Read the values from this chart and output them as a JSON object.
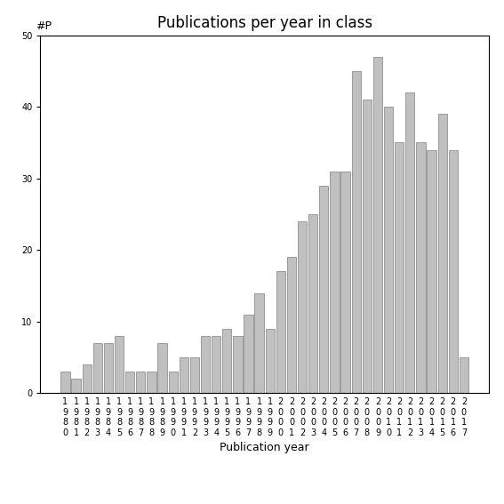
{
  "title": "Publications per year in class",
  "xlabel": "Publication year",
  "ylabel": "#P",
  "years": [
    "1980",
    "1981",
    "1982",
    "1983",
    "1984",
    "1985",
    "1986",
    "1987",
    "1988",
    "1989",
    "1990",
    "1991",
    "1992",
    "1993",
    "1994",
    "1995",
    "1996",
    "1997",
    "1998",
    "1999",
    "2000",
    "2001",
    "2002",
    "2003",
    "2004",
    "2005",
    "2006",
    "2007",
    "2008",
    "2009",
    "2010",
    "2011",
    "2012",
    "2013",
    "2014",
    "2015",
    "2016",
    "2017"
  ],
  "values": [
    3,
    2,
    4,
    7,
    7,
    8,
    3,
    3,
    3,
    7,
    3,
    5,
    5,
    8,
    8,
    9,
    8,
    11,
    14,
    9,
    17,
    19,
    24,
    25,
    29,
    31,
    31,
    45,
    41,
    47,
    40,
    35,
    42,
    35,
    34,
    39,
    34,
    5
  ],
  "bar_color": "#c0c0c0",
  "bar_edge_color": "#808080",
  "ylim": [
    0,
    50
  ],
  "yticks": [
    0,
    10,
    20,
    30,
    40,
    50
  ],
  "background_color": "#ffffff",
  "title_fontsize": 12,
  "label_fontsize": 9,
  "tick_fontsize": 7
}
